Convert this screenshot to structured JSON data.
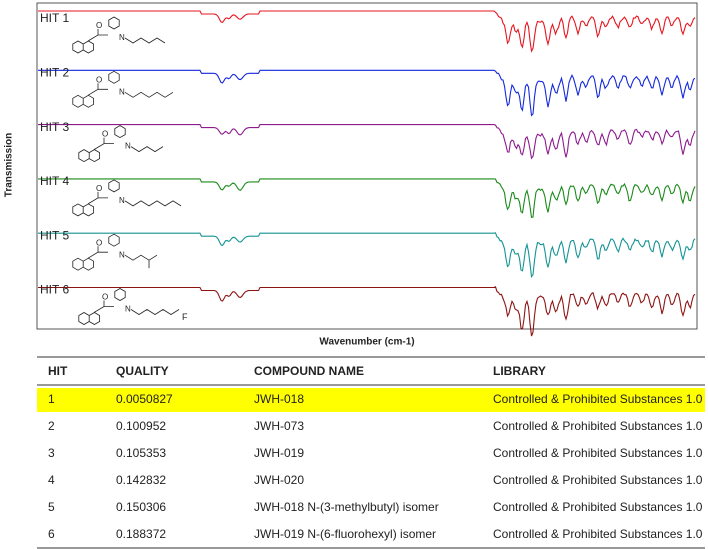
{
  "plot": {
    "y_axis_label": "Transmission",
    "x_axis_label": "Wavenumber (cm-1)",
    "hits": [
      {
        "label": "HIT 1",
        "color": "#e8141e",
        "atoms": [
          "O",
          "N"
        ]
      },
      {
        "label": "HIT 2",
        "color": "#1428e0",
        "atoms": [
          "O",
          "N"
        ]
      },
      {
        "label": "HIT 3",
        "color": "#8e1a8e",
        "atoms": [
          "O",
          "N"
        ]
      },
      {
        "label": "HIT 4",
        "color": "#1a8a1a",
        "atoms": [
          "O",
          "N"
        ]
      },
      {
        "label": "HIT 5",
        "color": "#159494",
        "atoms": [
          "O",
          "N"
        ]
      },
      {
        "label": "HIT 6",
        "color": "#8e1414",
        "atoms": [
          "O",
          "N",
          "F"
        ]
      }
    ]
  },
  "table": {
    "header": [
      "HIT",
      "QUALITY",
      "COMPOUND NAME",
      "LIBRARY"
    ],
    "rows": [
      [
        "1",
        "0.0050827",
        "JWH-018",
        "Controlled & Prohibited Substances 1.0"
      ],
      [
        "2",
        "0.100952",
        "JWH-073",
        "Controlled & Prohibited Substances 1.0"
      ],
      [
        "3",
        "0.105353",
        "JWH-019",
        "Controlled & Prohibited Substances 1.0"
      ],
      [
        "4",
        "0.142832",
        "JWH-020",
        "Controlled & Prohibited Substances 1.0"
      ],
      [
        "5",
        "0.150306",
        "JWH-018 N-(3-methylbutyl) isomer",
        "Controlled & Prohibited Substances 1.0"
      ],
      [
        "6",
        "0.188372",
        "JWH-019 N-(6-fluorohexyl) isomer",
        "Controlled & Prohibited Substances 1.0"
      ]
    ],
    "highlight_row": 0
  }
}
